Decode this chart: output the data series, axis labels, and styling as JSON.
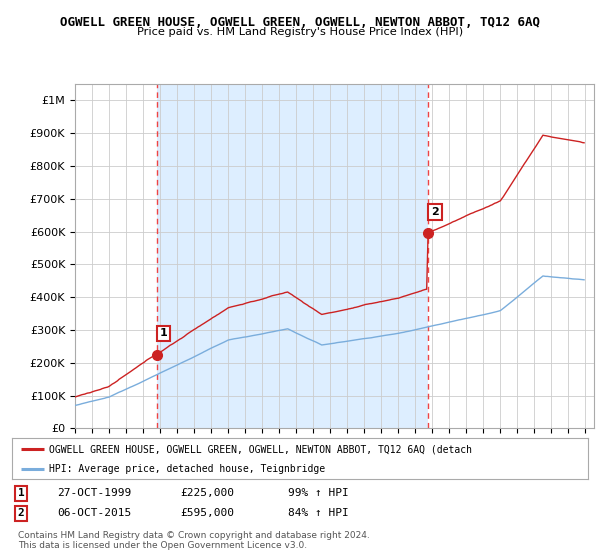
{
  "title": "OGWELL GREEN HOUSE, OGWELL GREEN, OGWELL, NEWTON ABBOT, TQ12 6AQ",
  "subtitle": "Price paid vs. HM Land Registry's House Price Index (HPI)",
  "ylim": [
    0,
    1050000
  ],
  "yticks": [
    0,
    100000,
    200000,
    300000,
    400000,
    500000,
    600000,
    700000,
    800000,
    900000,
    1000000
  ],
  "ytick_labels": [
    "£0",
    "£100K",
    "£200K",
    "£300K",
    "£400K",
    "£500K",
    "£600K",
    "£700K",
    "£800K",
    "£900K",
    "£1M"
  ],
  "red_line_color": "#cc2222",
  "blue_line_color": "#7aaddc",
  "fill_color": "#ddeeff",
  "dashed_vline_color": "#ee4444",
  "sale1_date": 1999.82,
  "sale1_price": 225000,
  "sale2_date": 2015.76,
  "sale2_price": 595000,
  "legend_label_red": "OGWELL GREEN HOUSE, OGWELL GREEN, OGWELL, NEWTON ABBOT, TQ12 6AQ (detach",
  "legend_label_blue": "HPI: Average price, detached house, Teignbridge",
  "table_row1": [
    "1",
    "27-OCT-1999",
    "£225,000",
    "99% ↑ HPI"
  ],
  "table_row2": [
    "2",
    "06-OCT-2015",
    "£595,000",
    "84% ↑ HPI"
  ],
  "footnote": "Contains HM Land Registry data © Crown copyright and database right 2024.\nThis data is licensed under the Open Government Licence v3.0.",
  "background_color": "#ffffff",
  "grid_color": "#cccccc"
}
